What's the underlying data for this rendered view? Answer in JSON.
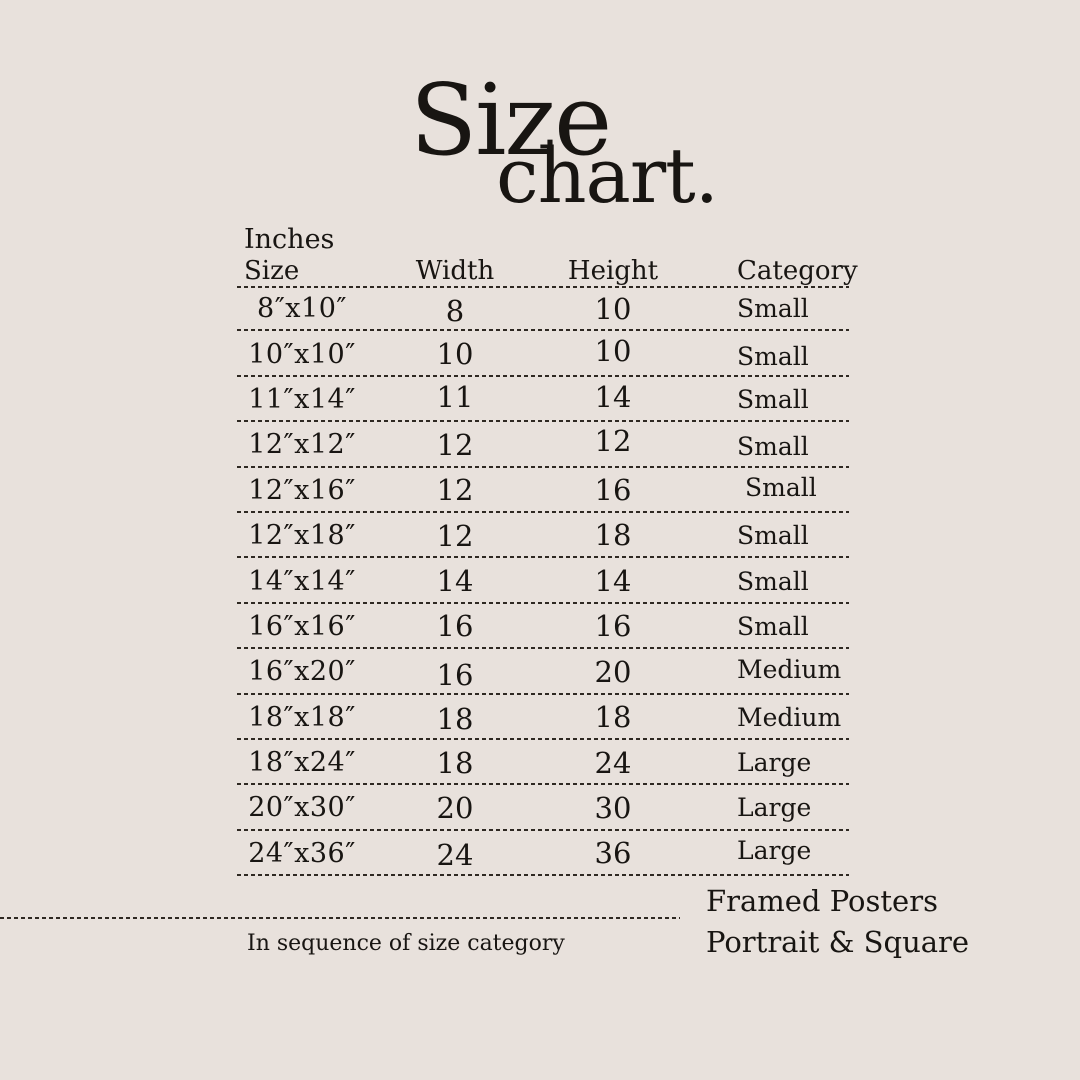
{
  "title": {
    "line1": "Size",
    "line2": "chart."
  },
  "table": {
    "unit_label": "Inches",
    "headers": [
      "Size",
      "Width",
      "Height",
      "Category"
    ],
    "rows": [
      {
        "size": "8″x10″",
        "width": "8",
        "height": "10",
        "category": "Small"
      },
      {
        "size": "10″x10″",
        "width": "10",
        "height": "10",
        "category": "Small"
      },
      {
        "size": "11″x14″",
        "width": "11",
        "height": "14",
        "category": "Small"
      },
      {
        "size": "12″x12″",
        "width": "12",
        "height": "12",
        "category": "Small"
      },
      {
        "size": "12″x16″",
        "width": "12",
        "height": "16",
        "category": "Small"
      },
      {
        "size": "12″x18″",
        "width": "12",
        "height": "18",
        "category": "Small"
      },
      {
        "size": "14″x14″",
        "width": "14",
        "height": "14",
        "category": "Small"
      },
      {
        "size": "16″x16″",
        "width": "16",
        "height": "16",
        "category": "Small"
      },
      {
        "size": "16″x20″",
        "width": "16",
        "height": "20",
        "category": "Medium"
      },
      {
        "size": "18″x18″",
        "width": "18",
        "height": "18",
        "category": "Medium"
      },
      {
        "size": "18″x24″",
        "width": "18",
        "height": "24",
        "category": "Large"
      },
      {
        "size": "20″x30″",
        "width": "20",
        "height": "30",
        "category": "Large"
      },
      {
        "size": "24″x36″",
        "width": "24",
        "height": "36",
        "category": "Large"
      }
    ]
  },
  "footer": {
    "sequence_note": "In sequence of size category",
    "product_line1": "Framed Posters",
    "product_line2": "Portrait & Square"
  },
  "colors": {
    "background": "#e8e1dc",
    "text": "#181512"
  }
}
